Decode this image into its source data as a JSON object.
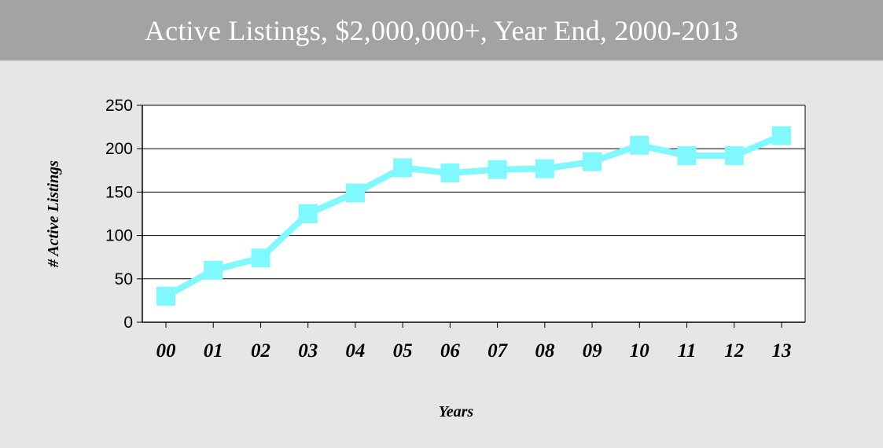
{
  "chart_data": {
    "type": "line",
    "title": "Active Listings, $2,000,000+, Year End, 2000-2013",
    "xlabel": "Years",
    "ylabel": "# Active Listings",
    "categories": [
      "00",
      "01",
      "02",
      "03",
      "04",
      "05",
      "06",
      "07",
      "08",
      "09",
      "10",
      "11",
      "12",
      "13"
    ],
    "series": [
      {
        "values": [
          30,
          60,
          74,
          125,
          149,
          178,
          172,
          176,
          177,
          185,
          204,
          192,
          192,
          215
        ]
      }
    ],
    "ylim": [
      0,
      250
    ],
    "yticks": [
      0,
      50,
      100,
      150,
      200,
      250
    ],
    "grid": true,
    "colors": {
      "line": "#80f8ff",
      "background": "#e6e6e6",
      "title_bar": "#a3a3a3",
      "plot_area": "#ffffff"
    }
  }
}
